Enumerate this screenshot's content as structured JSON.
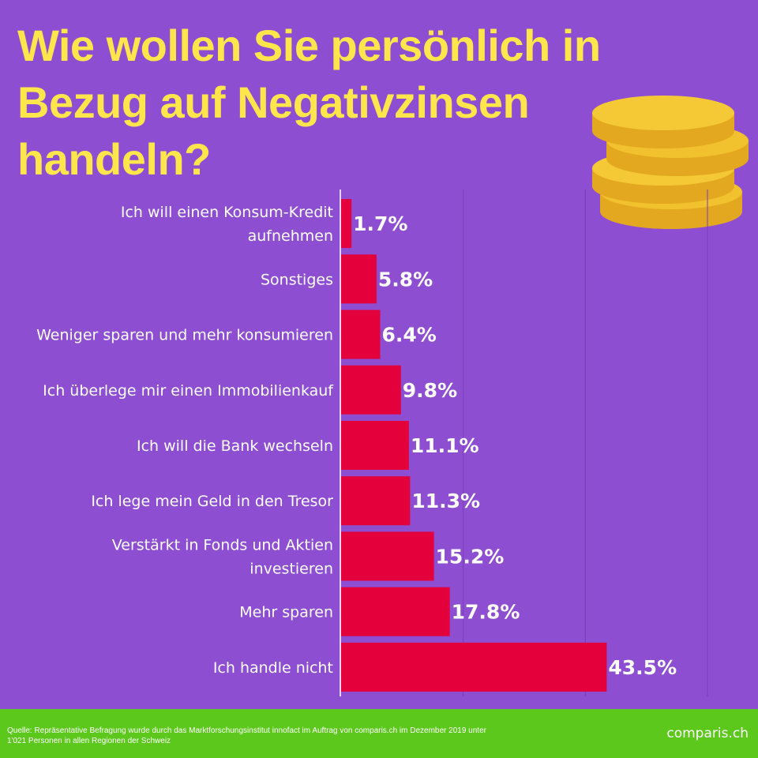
{
  "header": {
    "title_lines": [
      "Wie wollen Sie persönlich in",
      "Bezug auf Negativzinsen",
      "handeln?"
    ]
  },
  "chart_data": {
    "type": "bar",
    "orientation": "horizontal",
    "title": "Wie wollen Sie persönlich in Bezug auf Negativzinsen handeln?",
    "xlabel": "",
    "ylabel": "",
    "xlim": [
      0,
      60
    ],
    "grid": true,
    "unit": "%",
    "categories": [
      [
        "Ich will einen Konsum-Kredit",
        "aufnehmen"
      ],
      [
        "Sonstiges"
      ],
      [
        "Weniger sparen und mehr konsumieren"
      ],
      [
        "Ich überlege mir einen Immobilienkauf"
      ],
      [
        "Ich will die Bank wechseln"
      ],
      [
        "Ich lege mein Geld in den Tresor"
      ],
      [
        "Verstärkt in Fonds und Aktien",
        "investieren"
      ],
      [
        "Mehr sparen"
      ],
      [
        "Ich handle nicht"
      ]
    ],
    "values": [
      1.7,
      5.8,
      6.4,
      9.8,
      11.1,
      11.3,
      15.2,
      17.8,
      43.5
    ],
    "value_labels": [
      "1.7%",
      "5.8%",
      "6.4%",
      "9.8%",
      "11.1%",
      "11.3%",
      "15.2%",
      "17.8%",
      "43.5%"
    ]
  },
  "footer": {
    "source_line1": "Quelle: Repräsentative Befragung wurde durch das Marktforschungsinstitut innofact im Auftrag von comparis.ch im Dezember 2019 unter",
    "source_line2": "1'021 Personen in allen Regionen der Schweiz",
    "brand": "comparis.ch"
  },
  "colors": {
    "background": "#8e4ed1",
    "title": "#fde64b",
    "bar": "#e4003a",
    "grid": "#7a3cb8",
    "footer": "#5cc81c",
    "coin": "#f2c12e"
  }
}
